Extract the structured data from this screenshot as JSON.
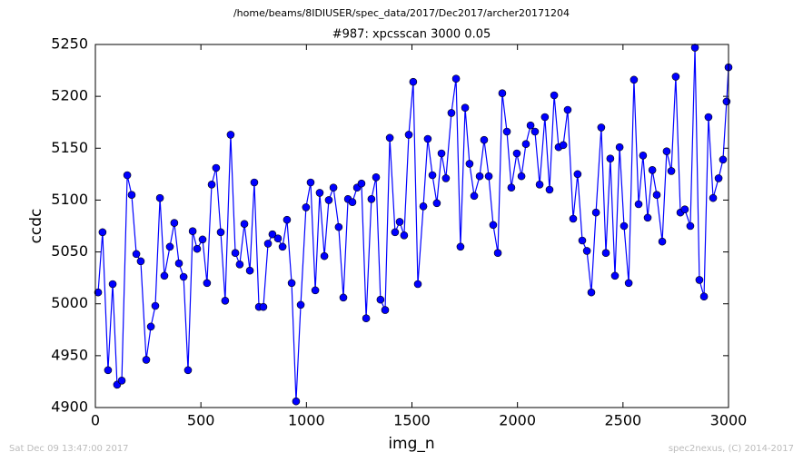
{
  "chart_data": {
    "type": "line",
    "suptitle": "/home/beams/8IDIUSER/spec_data/2017/Dec2017/archer20171204",
    "title": "#987: xpcsscan 3000 0.05",
    "xlabel": "img_n",
    "ylabel": "ccdc",
    "footer_left": "Sat Dec 09 13:47:00 2017",
    "footer_right": "spec2nexus, (C) 2014-2017",
    "x": [
      13,
      34,
      60,
      82,
      103,
      125,
      151,
      172,
      194,
      215,
      241,
      263,
      284,
      306,
      327,
      353,
      374,
      396,
      418,
      439,
      461,
      482,
      508,
      529,
      551,
      572,
      594,
      615,
      641,
      663,
      684,
      706,
      732,
      753,
      775,
      796,
      818,
      839,
      865,
      887,
      908,
      930,
      951,
      973,
      998,
      1020,
      1042,
      1063,
      1085,
      1106,
      1128,
      1153,
      1175,
      1197,
      1218,
      1240,
      1261,
      1283,
      1308,
      1330,
      1351,
      1373,
      1395,
      1420,
      1442,
      1463,
      1485,
      1506,
      1528,
      1554,
      1575,
      1597,
      1618,
      1640,
      1661,
      1687,
      1709,
      1730,
      1752,
      1773,
      1795,
      1821,
      1842,
      1864,
      1885,
      1907,
      1928,
      1950,
      1971,
      1997,
      2019,
      2040,
      2062,
      2083,
      2105,
      2130,
      2152,
      2174,
      2195,
      2217,
      2238,
      2264,
      2285,
      2307,
      2329,
      2350,
      2372,
      2397,
      2419,
      2440,
      2462,
      2484,
      2505,
      2527,
      2552,
      2574,
      2595,
      2617,
      2639,
      2660,
      2686,
      2707,
      2729,
      2750,
      2772,
      2793,
      2819,
      2841,
      2862,
      2884,
      2905,
      2927,
      2953,
      2974,
      2991,
      3000
    ],
    "series": [
      {
        "color": "#0000ff",
        "values": [
          5011,
          5069,
          4936,
          5019,
          4922,
          4926,
          5124,
          5105,
          5048,
          5041,
          4946,
          4978,
          4998,
          5102,
          5027,
          5055,
          5078,
          5039,
          5026,
          4936,
          5070,
          5053,
          5062,
          5020,
          5115,
          5131,
          5069,
          5003,
          5163,
          5049,
          5038,
          5077,
          5032,
          5117,
          4997,
          4997,
          5058,
          5067,
          5063,
          5055,
          5081,
          5020,
          4906,
          4999,
          5093,
          5117,
          5013,
          5107,
          5046,
          5100,
          5112,
          5074,
          5006,
          5101,
          5098,
          5112,
          5116,
          4986,
          5101,
          5122,
          5004,
          4994,
          5160,
          5069,
          5079,
          5066,
          5163,
          5214,
          5019,
          5094,
          5159,
          5124,
          5097,
          5145,
          5121,
          5184,
          5217,
          5055,
          5189,
          5135,
          5104,
          5123,
          5158,
          5123,
          5076,
          5049,
          5203,
          5166,
          5112,
          5145,
          5123,
          5154,
          5172,
          5166,
          5115,
          5180,
          5110,
          5201,
          5151,
          5153,
          5187,
          5082,
          5125,
          5061,
          5051,
          5011,
          5088,
          5170,
          5049,
          5140,
          5027,
          5151,
          5075,
          5020,
          5216,
          5096,
          5143,
          5083,
          5129,
          5105,
          5060,
          5147,
          5128,
          5219,
          5088,
          5091,
          5075,
          5247,
          5023,
          5007,
          5180,
          5102,
          5121,
          5139,
          5195,
          5228
        ]
      }
    ],
    "xlim": [
      0,
      3000
    ],
    "xticks": [
      0,
      500,
      1000,
      1500,
      2000,
      2500,
      3000
    ],
    "ylim": [
      4900,
      5250
    ],
    "yticks": [
      4900,
      4950,
      5000,
      5050,
      5100,
      5150,
      5200,
      5250
    ],
    "grid": false
  }
}
